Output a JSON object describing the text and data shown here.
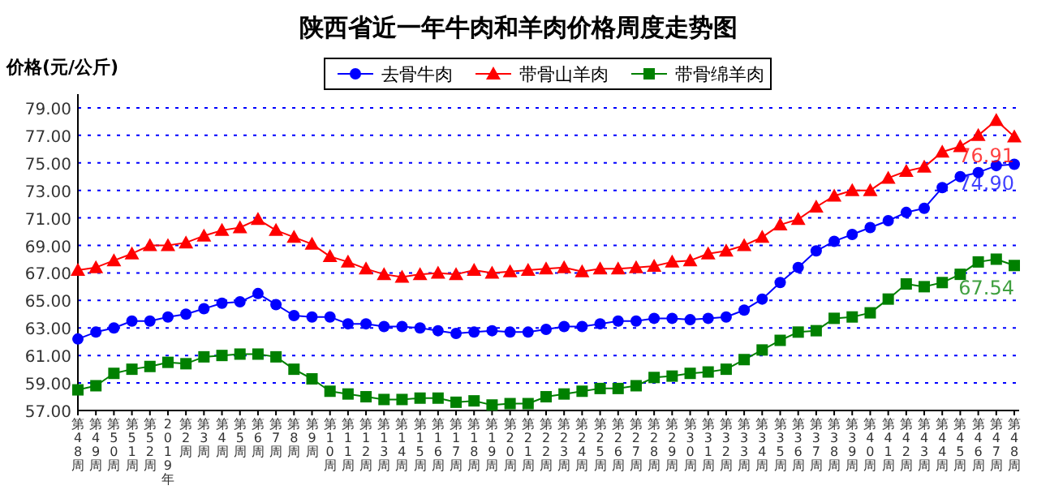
{
  "chart_data": {
    "type": "line",
    "title": "陕西省近一年牛肉和羊肉价格周度走势图",
    "ylabel": "价格(元/公斤)",
    "categories": [
      "第48周",
      "第49周",
      "第50周",
      "第51周",
      "第52周",
      "2019年",
      "第2周",
      "第3周",
      "第4周",
      "第5周",
      "第6周",
      "第7周",
      "第8周",
      "第9周",
      "第10周",
      "第11周",
      "第12周",
      "第13周",
      "第14周",
      "第15周",
      "第16周",
      "第17周",
      "第18周",
      "第19周",
      "第20周",
      "第21周",
      "第22周",
      "第23周",
      "第24周",
      "第25周",
      "第26周",
      "第27周",
      "第28周",
      "第29周",
      "第30周",
      "第31周",
      "第32周",
      "第33周",
      "第34周",
      "第35周",
      "第36周",
      "第37周",
      "第38周",
      "第39周",
      "第40周",
      "第41周",
      "第42周",
      "第43周",
      "第44周",
      "第45周",
      "第46周",
      "第47周",
      "第48周"
    ],
    "series": [
      {
        "name": "去骨牛肉",
        "color": "#0000ff",
        "marker": "circle",
        "values": [
          62.2,
          62.7,
          63.0,
          63.5,
          63.5,
          63.8,
          64.0,
          64.4,
          64.8,
          64.9,
          65.5,
          64.7,
          63.9,
          63.8,
          63.8,
          63.3,
          63.3,
          63.1,
          63.1,
          63.0,
          62.8,
          62.6,
          62.7,
          62.8,
          62.7,
          62.7,
          62.9,
          63.1,
          63.1,
          63.3,
          63.5,
          63.5,
          63.7,
          63.7,
          63.6,
          63.7,
          63.8,
          64.3,
          65.1,
          66.3,
          67.4,
          68.6,
          69.3,
          69.8,
          70.3,
          70.8,
          71.4,
          71.7,
          73.2,
          74.0,
          74.3,
          74.8,
          74.9
        ],
        "value_labels": [
          null,
          null,
          null,
          null,
          null,
          null,
          null,
          null,
          null,
          null,
          null,
          null,
          null,
          null,
          null,
          null,
          null,
          null,
          null,
          null,
          null,
          null,
          null,
          null,
          null,
          null,
          null,
          null,
          null,
          null,
          null,
          null,
          null,
          null,
          null,
          null,
          null,
          null,
          null,
          null,
          null,
          null,
          null,
          null,
          null,
          null,
          null,
          null,
          null,
          null,
          null,
          null,
          "74.90"
        ]
      },
      {
        "name": "带骨山羊肉",
        "color": "#ff0000",
        "marker": "triangle",
        "values": [
          67.2,
          67.4,
          67.9,
          68.4,
          69.0,
          69.0,
          69.2,
          69.7,
          70.1,
          70.3,
          70.9,
          70.1,
          69.6,
          69.1,
          68.2,
          67.8,
          67.3,
          66.9,
          66.7,
          66.9,
          67.0,
          66.9,
          67.2,
          67.0,
          67.1,
          67.2,
          67.3,
          67.4,
          67.1,
          67.3,
          67.3,
          67.4,
          67.5,
          67.8,
          67.9,
          68.4,
          68.6,
          69.0,
          69.6,
          70.5,
          70.9,
          71.8,
          72.6,
          73.0,
          73.0,
          73.9,
          74.4,
          74.7,
          75.8,
          76.2,
          77.0,
          78.1,
          76.91
        ],
        "value_labels": [
          null,
          null,
          null,
          null,
          null,
          null,
          null,
          null,
          null,
          null,
          null,
          null,
          null,
          null,
          null,
          null,
          null,
          null,
          null,
          null,
          null,
          null,
          null,
          null,
          null,
          null,
          null,
          null,
          null,
          null,
          null,
          null,
          null,
          null,
          null,
          null,
          null,
          null,
          null,
          null,
          null,
          null,
          null,
          null,
          null,
          null,
          null,
          null,
          null,
          null,
          null,
          null,
          "76.91"
        ]
      },
      {
        "name": "带骨绵羊肉",
        "color": "#008000",
        "marker": "square",
        "values": [
          58.5,
          58.8,
          59.7,
          60.0,
          60.2,
          60.5,
          60.4,
          60.9,
          61.0,
          61.1,
          61.1,
          60.9,
          60.0,
          59.3,
          58.4,
          58.2,
          58.0,
          57.8,
          57.8,
          57.9,
          57.9,
          57.6,
          57.7,
          57.4,
          57.5,
          57.5,
          58.0,
          58.2,
          58.4,
          58.6,
          58.6,
          58.8,
          59.4,
          59.5,
          59.7,
          59.8,
          60.0,
          60.7,
          61.4,
          62.1,
          62.7,
          62.8,
          63.7,
          63.8,
          64.1,
          65.1,
          66.2,
          66.0,
          66.3,
          66.9,
          67.8,
          68.0,
          67.54
        ],
        "value_labels": [
          null,
          null,
          null,
          null,
          null,
          null,
          null,
          null,
          null,
          null,
          null,
          null,
          null,
          null,
          null,
          null,
          null,
          null,
          null,
          null,
          null,
          null,
          null,
          null,
          null,
          null,
          null,
          null,
          null,
          null,
          null,
          null,
          null,
          null,
          null,
          null,
          null,
          null,
          null,
          null,
          null,
          null,
          null,
          null,
          null,
          null,
          null,
          null,
          null,
          null,
          null,
          null,
          "67.54"
        ]
      }
    ],
    "ylim": [
      57,
      80
    ],
    "yticks": [
      {
        "value": 57,
        "label": "57.00"
      },
      {
        "value": 59,
        "label": "59.00"
      },
      {
        "value": 61,
        "label": "61.00"
      },
      {
        "value": 63,
        "label": "63.00"
      },
      {
        "value": 65,
        "label": "65.00"
      },
      {
        "value": 67,
        "label": "67.00"
      },
      {
        "value": 69,
        "label": "69.00"
      },
      {
        "value": 71,
        "label": "71.00"
      },
      {
        "value": 73,
        "label": "73.00"
      },
      {
        "value": 75,
        "label": "75.00"
      },
      {
        "value": 77,
        "label": "77.00"
      },
      {
        "value": 79,
        "label": "79.00"
      }
    ],
    "grid": "y",
    "legend": "top"
  }
}
